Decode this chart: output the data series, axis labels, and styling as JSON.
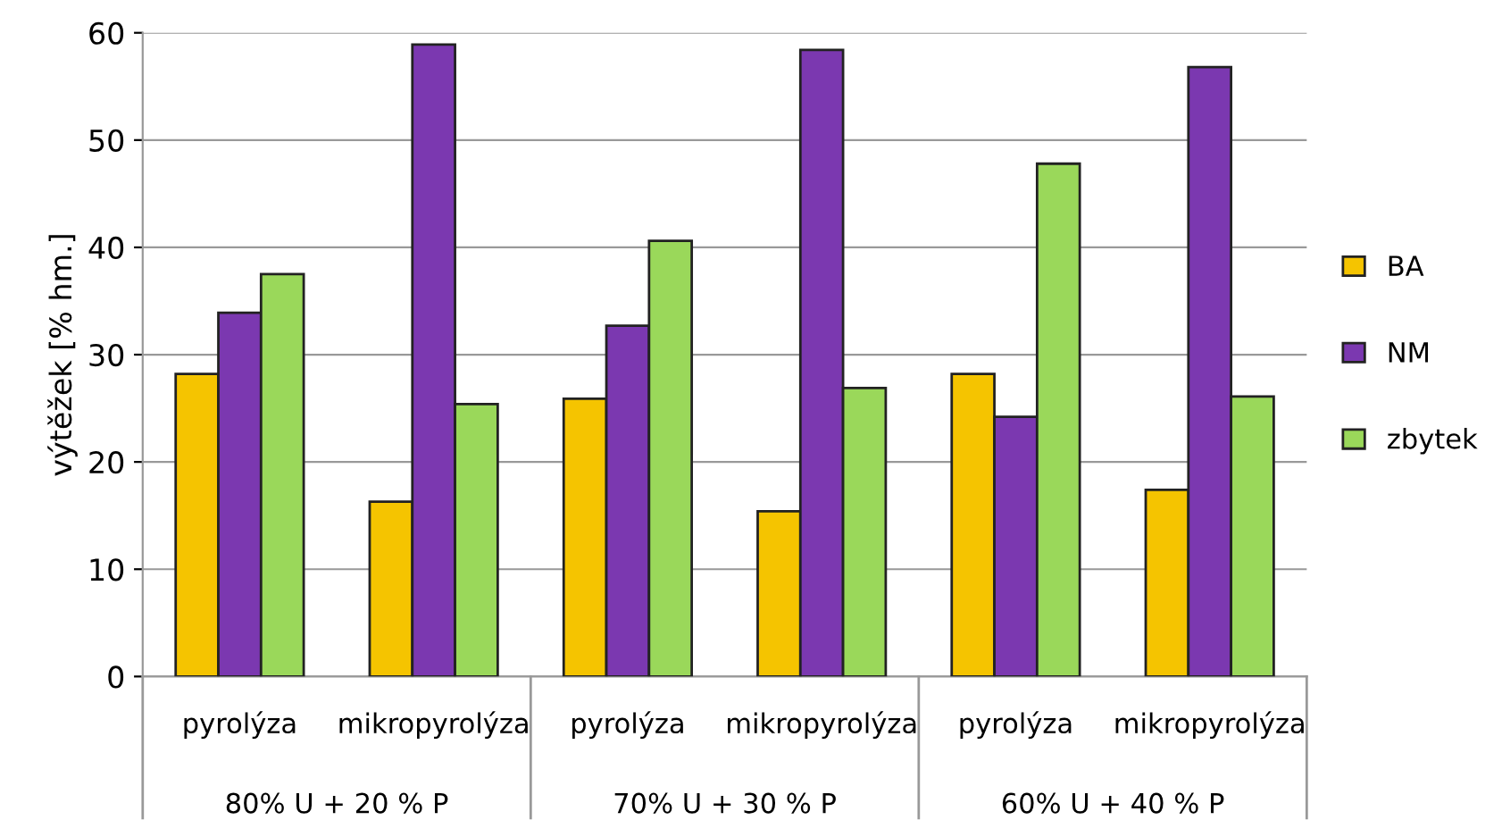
{
  "chart_data": {
    "type": "bar",
    "ylabel": "výtěžek [% hm.]",
    "categories": [
      "pyrolýza",
      "mikropyrolýza",
      "pyrolýza",
      "mikropyrolýza",
      "pyrolýza",
      "mikropyrolýza"
    ],
    "series": [
      {
        "name": "BA",
        "color": "#f5c400",
        "values": [
          28.2,
          16.3,
          25.9,
          15.4,
          28.2,
          17.4
        ]
      },
      {
        "name": "NM",
        "color": "#7b38b0",
        "values": [
          33.9,
          58.9,
          32.7,
          58.4,
          24.2,
          56.8
        ]
      },
      {
        "name": "zbytek",
        "color": "#9ad85a",
        "values": [
          37.5,
          25.4,
          40.6,
          26.9,
          47.8,
          26.1
        ]
      }
    ],
    "annotations": [
      "80% U + 20 % P",
      "70% U + 30 % P",
      "60% U + 40 % P"
    ],
    "ylim": [
      0,
      60
    ],
    "yticks": [
      0,
      10,
      20,
      30,
      40,
      50,
      60
    ],
    "grid": "y",
    "legend": "right"
  }
}
